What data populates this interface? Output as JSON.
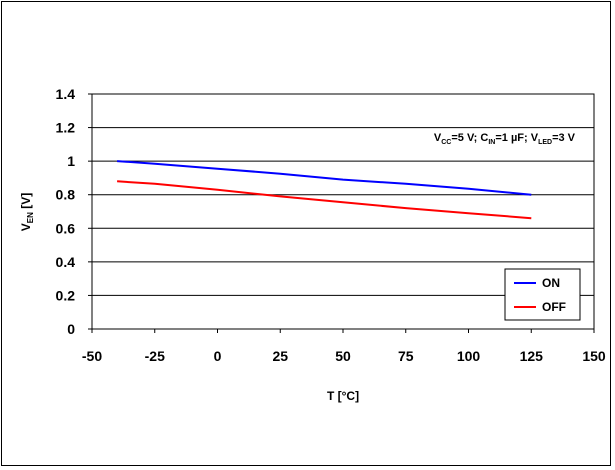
{
  "chart_data": {
    "type": "line",
    "x": [
      -40,
      -25,
      0,
      25,
      50,
      75,
      100,
      125
    ],
    "series": [
      {
        "name": "ON",
        "color": "#0000ff",
        "values": [
          1.0,
          0.985,
          0.955,
          0.925,
          0.89,
          0.865,
          0.835,
          0.8
        ]
      },
      {
        "name": "OFF",
        "color": "#ff0000",
        "values": [
          0.88,
          0.865,
          0.83,
          0.79,
          0.755,
          0.72,
          0.69,
          0.66
        ]
      }
    ],
    "xlim": [
      -50,
      150
    ],
    "ylim": [
      0,
      1.4
    ],
    "xticks": [
      "-50",
      "-25",
      "0",
      "25",
      "50",
      "75",
      "100",
      "125",
      "150"
    ],
    "yticks": [
      "0",
      "0.2",
      "0.4",
      "0.6",
      "0.8",
      "1",
      "1.2",
      "1.4"
    ],
    "xlabel": "T [°C]",
    "ylabel": {
      "main": "V",
      "sub": "EN",
      "rest": " [V]"
    },
    "conditions": [
      {
        "t": "V",
        "sub": "CC",
        "rest": "=5 V; C"
      },
      {
        "t": "",
        "sub": "IN",
        "rest": "=1 µF; V"
      },
      {
        "t": "",
        "sub": "LED",
        "rest": "=3 V"
      }
    ],
    "grid": true,
    "legend_position": "bottom-right"
  }
}
